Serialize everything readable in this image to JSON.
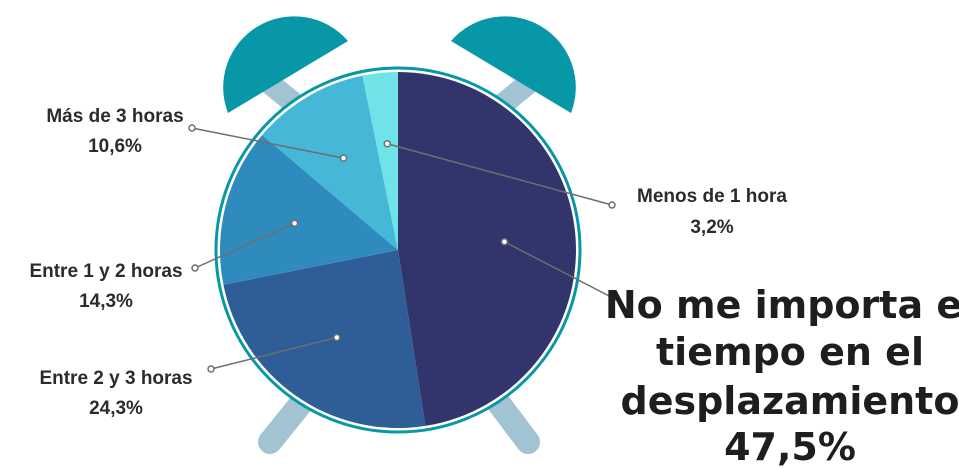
{
  "chart_data": {
    "type": "pie",
    "categories": [
      "No me importa el tiempo en el desplazamiento",
      "Entre 2 y 3 horas",
      "Entre 1 y 2 horas",
      "Más de 3 horas",
      "Menos de 1 hora"
    ],
    "values": [
      47.5,
      24.3,
      14.3,
      10.6,
      3.2
    ],
    "colors": [
      "#32356b",
      "#2e5d97",
      "#2f8bbd",
      "#45b8d8",
      "#6fe3e8"
    ],
    "labels": {
      "big": [
        "No me importa el",
        "tiempo en el",
        "desplazamiento",
        "47,5%"
      ],
      "l1": [
        "Entre 2 y 3 horas",
        "24,3%"
      ],
      "l2": [
        "Entre 1 y 2 horas",
        "14,3%"
      ],
      "l3": [
        "Más de 3 horas",
        "10,6%"
      ],
      "l4": [
        "Menos de 1 hora",
        "3,2%"
      ]
    }
  },
  "decor": {
    "bell_color": "#0897a7",
    "leg_color": "#a2c4d2",
    "rim_color": "#0897a7",
    "leader_color": "#6e6e6e"
  }
}
